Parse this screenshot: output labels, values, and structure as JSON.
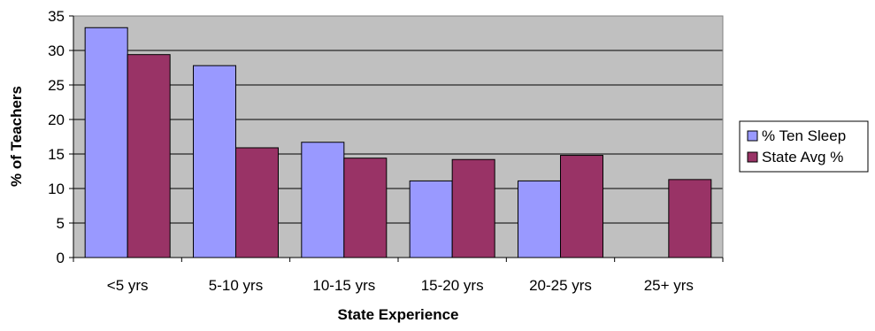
{
  "chart_data": {
    "type": "bar",
    "title": "",
    "xlabel": "State Experience",
    "ylabel": "% of Teachers",
    "categories": [
      "<5 yrs",
      "5-10 yrs",
      "10-15 yrs",
      "15-20 yrs",
      "20-25 yrs",
      "25+ yrs"
    ],
    "series": [
      {
        "name": "% Ten Sleep",
        "color": "#9999ff",
        "values": [
          33.3,
          27.8,
          16.7,
          11.1,
          11.1,
          0
        ]
      },
      {
        "name": "State Avg %",
        "color": "#993366",
        "values": [
          29.4,
          15.9,
          14.4,
          14.2,
          14.8,
          11.3
        ]
      }
    ],
    "ylim": [
      0,
      35
    ],
    "yticks": [
      "0",
      "5",
      "10",
      "15",
      "20",
      "25",
      "30",
      "35"
    ],
    "grid": true,
    "plot_background": "#c0c0c0",
    "legend_position": "right"
  }
}
